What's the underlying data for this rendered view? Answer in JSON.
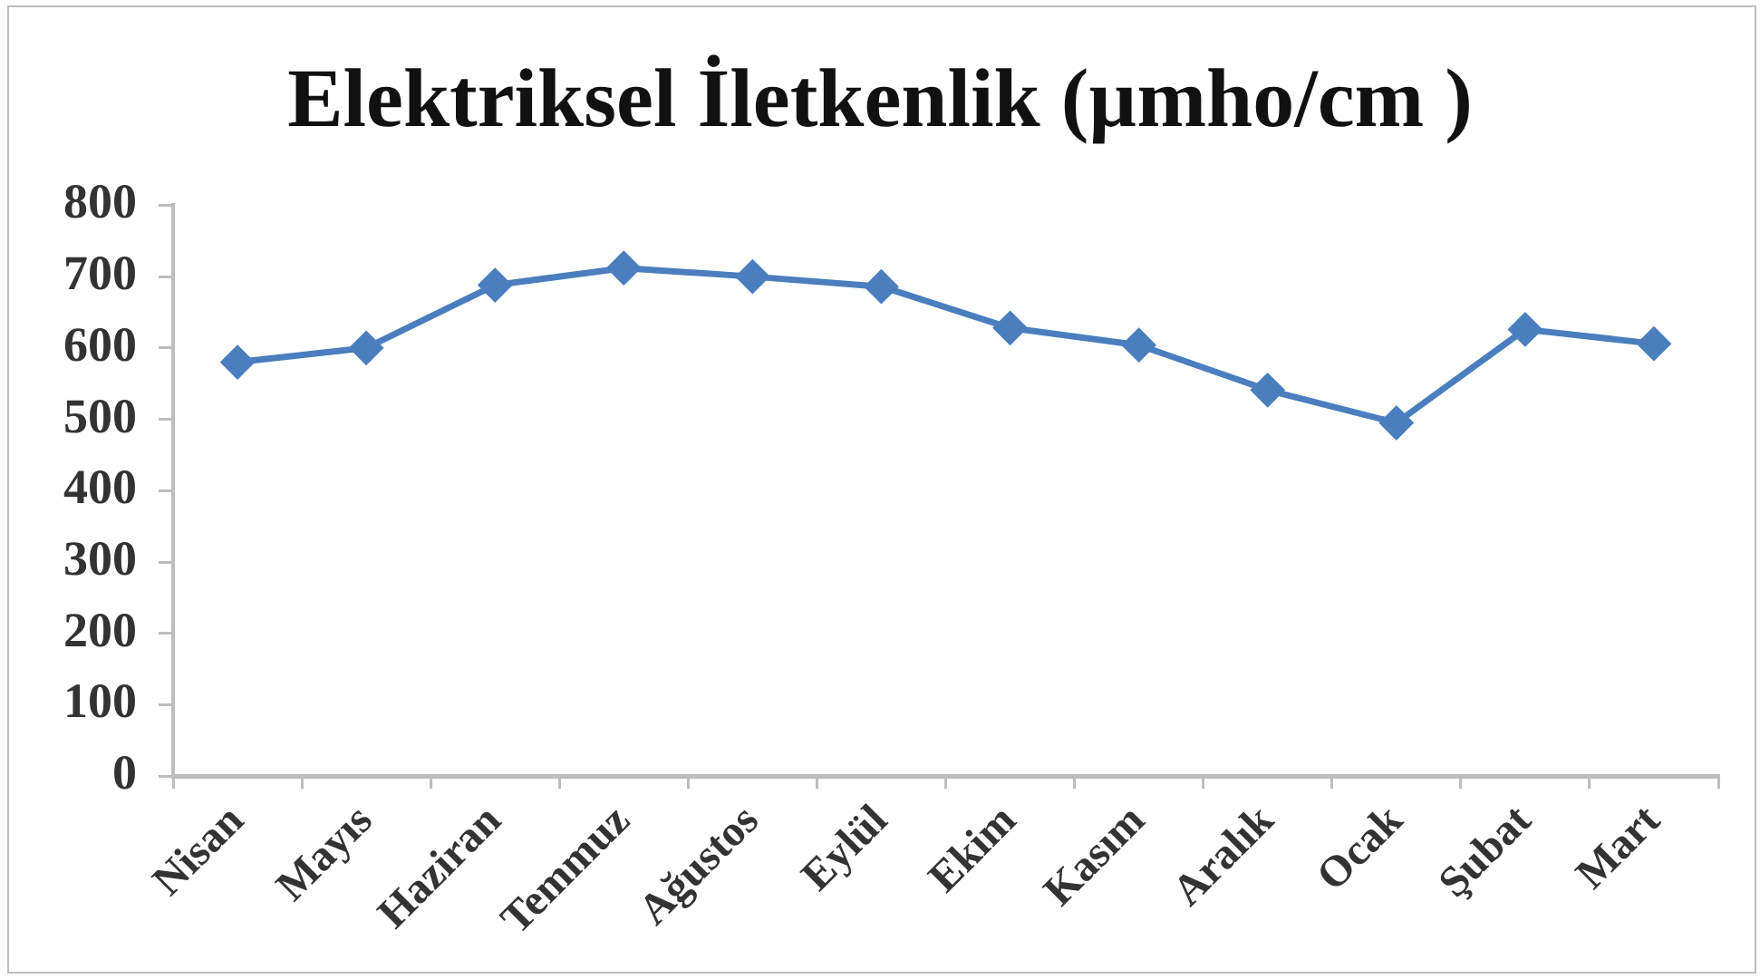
{
  "chart_data": {
    "type": "line",
    "title": "Elektriksel İletkenlik (µmho/cm )",
    "categories": [
      "Nisan",
      "Mayıs",
      "Haziran",
      "Temmuz",
      "Ağustos",
      "Eylül",
      "Ekim",
      "Kasım",
      "Aralık",
      "Ocak",
      "Şubat",
      "Mart"
    ],
    "series": [
      {
        "color": "#4a7ebf",
        "values": [
          580,
          600,
          688,
          712,
          700,
          686,
          628,
          604,
          541,
          495,
          626,
          606
        ]
      }
    ],
    "ylim": [
      0,
      800
    ],
    "yticks": [
      0,
      100,
      200,
      300,
      400,
      500,
      600,
      700,
      800
    ],
    "grid": false,
    "legend": false,
    "marker": "diamond",
    "line_style": "solid"
  }
}
